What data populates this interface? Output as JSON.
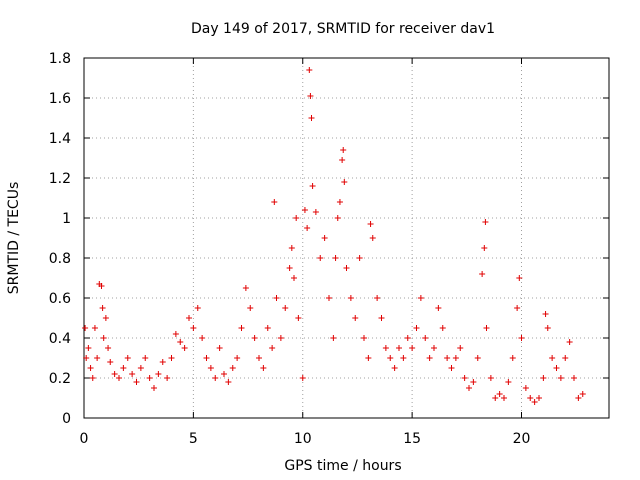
{
  "chart_data": {
    "type": "scatter",
    "title": "Day 149 of 2017, SRMTID for receiver dav1",
    "xlabel": "GPS time / hours",
    "ylabel": "SRMTID / TECUs",
    "xlim": [
      0,
      24
    ],
    "ylim": [
      0,
      1.8
    ],
    "xticks": [
      0,
      5,
      10,
      15,
      20
    ],
    "yticks": [
      0,
      0.2,
      0.4,
      0.6,
      0.8,
      1,
      1.2,
      1.4,
      1.6,
      1.8
    ],
    "xtick_labels": [
      "0",
      "5",
      "10",
      "15",
      "20"
    ],
    "ytick_labels": [
      "0",
      "0.2",
      "0.4",
      "0.6",
      "0.8",
      "1",
      "1.2",
      "1.4",
      "1.6",
      "1.8"
    ],
    "grid": true,
    "marker": "+",
    "color": "#e00000",
    "series": [
      {
        "name": "dav1",
        "points": [
          [
            0.05,
            0.45
          ],
          [
            0.1,
            0.3
          ],
          [
            0.2,
            0.35
          ],
          [
            0.3,
            0.25
          ],
          [
            0.4,
            0.2
          ],
          [
            0.5,
            0.45
          ],
          [
            0.6,
            0.3
          ],
          [
            0.7,
            0.67
          ],
          [
            0.8,
            0.66
          ],
          [
            0.85,
            0.55
          ],
          [
            0.9,
            0.4
          ],
          [
            1.0,
            0.5
          ],
          [
            1.1,
            0.35
          ],
          [
            1.2,
            0.28
          ],
          [
            1.4,
            0.22
          ],
          [
            1.6,
            0.2
          ],
          [
            1.8,
            0.25
          ],
          [
            2.0,
            0.3
          ],
          [
            2.2,
            0.22
          ],
          [
            2.4,
            0.18
          ],
          [
            2.6,
            0.25
          ],
          [
            2.8,
            0.3
          ],
          [
            3.0,
            0.2
          ],
          [
            3.2,
            0.15
          ],
          [
            3.4,
            0.22
          ],
          [
            3.6,
            0.28
          ],
          [
            3.8,
            0.2
          ],
          [
            4.0,
            0.3
          ],
          [
            4.2,
            0.42
          ],
          [
            4.4,
            0.38
          ],
          [
            4.6,
            0.35
          ],
          [
            4.8,
            0.5
          ],
          [
            5.0,
            0.45
          ],
          [
            5.2,
            0.55
          ],
          [
            5.4,
            0.4
          ],
          [
            5.6,
            0.3
          ],
          [
            5.8,
            0.25
          ],
          [
            6.0,
            0.2
          ],
          [
            6.2,
            0.35
          ],
          [
            6.4,
            0.22
          ],
          [
            6.6,
            0.18
          ],
          [
            6.8,
            0.25
          ],
          [
            7.0,
            0.3
          ],
          [
            7.2,
            0.45
          ],
          [
            7.4,
            0.65
          ],
          [
            7.6,
            0.55
          ],
          [
            7.8,
            0.4
          ],
          [
            8.0,
            0.3
          ],
          [
            8.2,
            0.25
          ],
          [
            8.4,
            0.45
          ],
          [
            8.6,
            0.35
          ],
          [
            8.7,
            1.08
          ],
          [
            8.8,
            0.6
          ],
          [
            9.0,
            0.4
          ],
          [
            9.2,
            0.55
          ],
          [
            9.4,
            0.75
          ],
          [
            9.5,
            0.85
          ],
          [
            9.6,
            0.7
          ],
          [
            9.7,
            1.0
          ],
          [
            9.8,
            0.5
          ],
          [
            10.0,
            0.2
          ],
          [
            10.1,
            1.04
          ],
          [
            10.2,
            0.95
          ],
          [
            10.3,
            1.74
          ],
          [
            10.35,
            1.61
          ],
          [
            10.4,
            1.5
          ],
          [
            10.45,
            1.16
          ],
          [
            10.6,
            1.03
          ],
          [
            10.8,
            0.8
          ],
          [
            11.0,
            0.9
          ],
          [
            11.2,
            0.6
          ],
          [
            11.4,
            0.4
          ],
          [
            11.5,
            0.8
          ],
          [
            11.6,
            1.0
          ],
          [
            11.7,
            1.08
          ],
          [
            11.8,
            1.29
          ],
          [
            11.85,
            1.34
          ],
          [
            11.9,
            1.18
          ],
          [
            12.0,
            0.75
          ],
          [
            12.2,
            0.6
          ],
          [
            12.4,
            0.5
          ],
          [
            12.6,
            0.8
          ],
          [
            12.8,
            0.4
          ],
          [
            13.0,
            0.3
          ],
          [
            13.1,
            0.97
          ],
          [
            13.2,
            0.9
          ],
          [
            13.4,
            0.6
          ],
          [
            13.6,
            0.5
          ],
          [
            13.8,
            0.35
          ],
          [
            14.0,
            0.3
          ],
          [
            14.2,
            0.25
          ],
          [
            14.4,
            0.35
          ],
          [
            14.6,
            0.3
          ],
          [
            14.8,
            0.4
          ],
          [
            15.0,
            0.35
          ],
          [
            15.2,
            0.45
          ],
          [
            15.4,
            0.6
          ],
          [
            15.6,
            0.4
          ],
          [
            15.8,
            0.3
          ],
          [
            16.0,
            0.35
          ],
          [
            16.2,
            0.55
          ],
          [
            16.4,
            0.45
          ],
          [
            16.6,
            0.3
          ],
          [
            16.8,
            0.25
          ],
          [
            17.0,
            0.3
          ],
          [
            17.2,
            0.35
          ],
          [
            17.4,
            0.2
          ],
          [
            17.6,
            0.15
          ],
          [
            17.8,
            0.18
          ],
          [
            18.0,
            0.3
          ],
          [
            18.2,
            0.72
          ],
          [
            18.3,
            0.85
          ],
          [
            18.35,
            0.98
          ],
          [
            18.4,
            0.45
          ],
          [
            18.6,
            0.2
          ],
          [
            18.8,
            0.1
          ],
          [
            19.0,
            0.12
          ],
          [
            19.2,
            0.1
          ],
          [
            19.4,
            0.18
          ],
          [
            19.6,
            0.3
          ],
          [
            19.8,
            0.55
          ],
          [
            19.9,
            0.7
          ],
          [
            20.0,
            0.4
          ],
          [
            20.2,
            0.15
          ],
          [
            20.4,
            0.1
          ],
          [
            20.6,
            0.08
          ],
          [
            20.8,
            0.1
          ],
          [
            21.0,
            0.2
          ],
          [
            21.1,
            0.52
          ],
          [
            21.2,
            0.45
          ],
          [
            21.4,
            0.3
          ],
          [
            21.6,
            0.25
          ],
          [
            21.8,
            0.2
          ],
          [
            22.0,
            0.3
          ],
          [
            22.2,
            0.38
          ],
          [
            22.4,
            0.2
          ],
          [
            22.6,
            0.1
          ],
          [
            22.8,
            0.12
          ]
        ]
      }
    ]
  }
}
